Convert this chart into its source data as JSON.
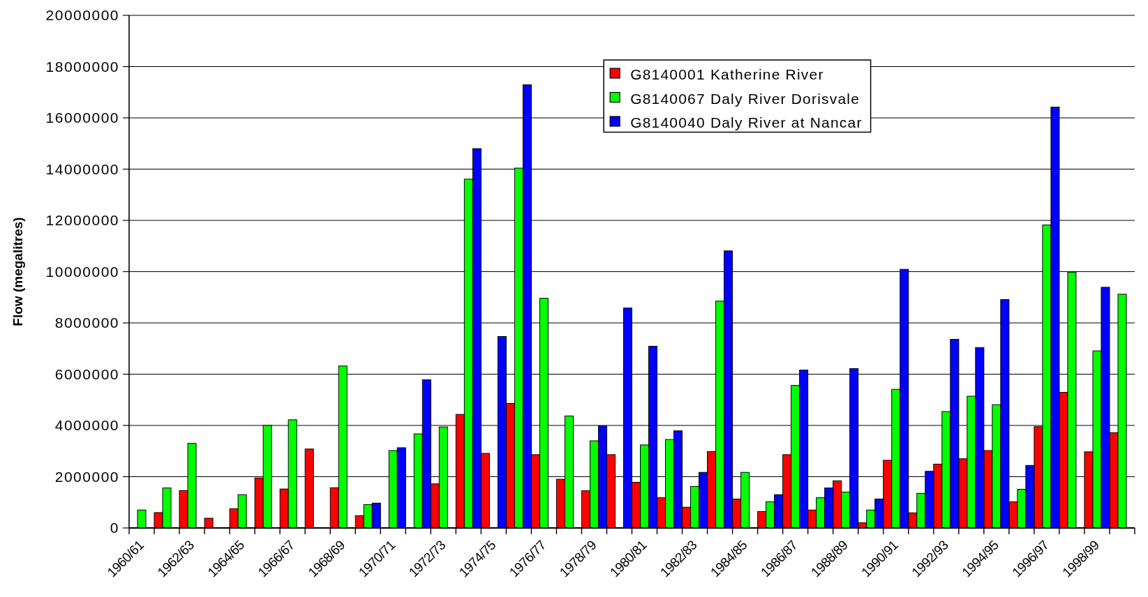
{
  "chart_data": {
    "type": "bar",
    "ylabel": "Flow (megalitres)",
    "categories": [
      "1960/61",
      null,
      "1962/63",
      null,
      "1964/65",
      null,
      "1966/67",
      null,
      "1968/69",
      null,
      "1970/71",
      null,
      "1972/73",
      null,
      "1974/75",
      null,
      "1976/77",
      null,
      "1978/79",
      null,
      "1980/81",
      null,
      "1982/83",
      null,
      "1984/85",
      null,
      "1986/87",
      null,
      "1988/89",
      null,
      "1990/91",
      null,
      "1992/93",
      null,
      "1994/95",
      null,
      "1996/97",
      null,
      "1998/99",
      null
    ],
    "series": [
      {
        "name": "G8140001 Katherine River",
        "color": "#ff0000",
        "values": [
          null,
          600000,
          1460000,
          380000,
          750000,
          1950000,
          1520000,
          3080000,
          1570000,
          480000,
          null,
          null,
          1720000,
          4430000,
          2910000,
          4860000,
          2860000,
          1900000,
          1450000,
          2860000,
          1780000,
          1180000,
          810000,
          2980000,
          1130000,
          640000,
          2860000,
          700000,
          1840000,
          200000,
          2640000,
          590000,
          2490000,
          2700000,
          3020000,
          1020000,
          3950000,
          5290000,
          2970000,
          3720000
        ]
      },
      {
        "name": "G8140067 Daly River Dorisvale",
        "color": "#00ff00",
        "values": [
          700000,
          1560000,
          3300000,
          null,
          1300000,
          4000000,
          4220000,
          null,
          6320000,
          910000,
          3020000,
          3670000,
          3940000,
          13610000,
          null,
          14040000,
          8960000,
          4370000,
          3400000,
          null,
          3240000,
          3450000,
          1620000,
          8850000,
          2170000,
          1020000,
          5560000,
          1180000,
          1400000,
          700000,
          5410000,
          1350000,
          4540000,
          5140000,
          4810000,
          1510000,
          11820000,
          9980000,
          6910000,
          9120000
        ]
      },
      {
        "name": "G8140040 Daly River at Nancar",
        "color": "#0000ff",
        "values": [
          null,
          null,
          null,
          null,
          null,
          null,
          null,
          null,
          null,
          970000,
          3130000,
          5780000,
          null,
          14800000,
          7470000,
          17290000,
          null,
          null,
          3980000,
          8580000,
          7090000,
          3790000,
          2170000,
          10810000,
          null,
          1300000,
          6160000,
          1560000,
          6220000,
          1130000,
          10090000,
          2210000,
          7360000,
          7040000,
          8910000,
          2440000,
          16420000,
          null,
          9390000,
          null
        ]
      }
    ],
    "ylim": [
      0,
      20000000
    ],
    "yticks": [
      0,
      2000000,
      4000000,
      6000000,
      8000000,
      10000000,
      12000000,
      14000000,
      16000000,
      18000000,
      20000000
    ],
    "grid": "y",
    "legend": "top"
  }
}
